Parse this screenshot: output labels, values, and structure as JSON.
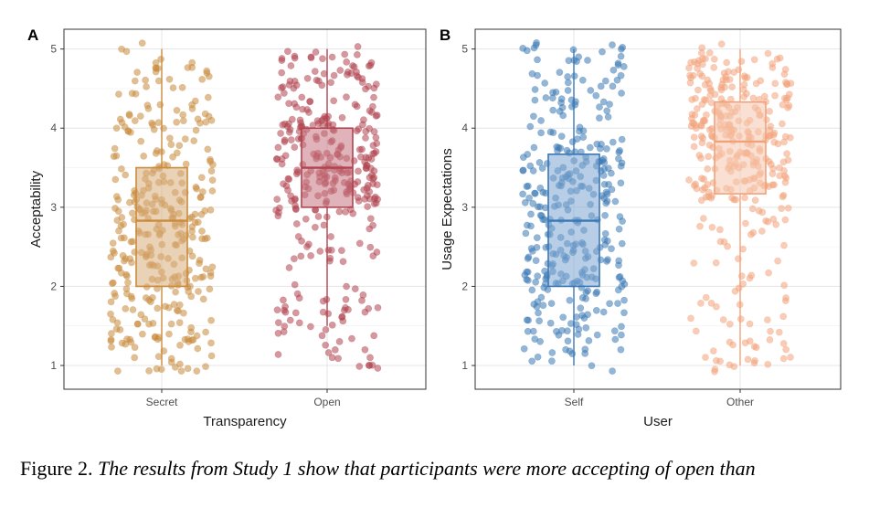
{
  "caption": {
    "lead": "Figure 2.",
    "text": "The results from Study 1 show that participants were more accepting of open than"
  },
  "chart_data": [
    {
      "type": "boxplot",
      "panel": "A",
      "xlabel": "Transparency",
      "ylabel": "Acceptability",
      "ylim": [
        0.7,
        5.25
      ],
      "yticks": [
        1,
        2,
        3,
        4,
        5
      ],
      "grid": true,
      "jittered_points": true,
      "categories": [
        "Secret",
        "Open"
      ],
      "colors": [
        "#c98b3c",
        "#b0434f"
      ],
      "box_fills": [
        "#d9ad7c",
        "#c47580"
      ],
      "boxes": [
        {
          "q1": 2.0,
          "median": 2.83,
          "q3": 3.5,
          "whisker_low": 1.0,
          "whisker_high": 5.0
        },
        {
          "q1": 3.0,
          "median": 3.5,
          "q3": 4.0,
          "whisker_low": 1.5,
          "whisker_high": 5.0
        }
      ]
    },
    {
      "type": "boxplot",
      "panel": "B",
      "xlabel": "User",
      "ylabel": "Usage Expectations",
      "ylim": [
        0.7,
        5.25
      ],
      "yticks": [
        1,
        2,
        3,
        4,
        5
      ],
      "grid": true,
      "jittered_points": true,
      "categories": [
        "Self",
        "Other"
      ],
      "colors": [
        "#3a78b5",
        "#f2a27a"
      ],
      "box_fills": [
        "#7ea6d2",
        "#f6c6ad"
      ],
      "boxes": [
        {
          "q1": 2.0,
          "median": 2.83,
          "q3": 3.67,
          "whisker_low": 1.0,
          "whisker_high": 5.0
        },
        {
          "q1": 3.17,
          "median": 3.83,
          "q3": 4.33,
          "whisker_low": 1.0,
          "whisker_high": 5.0
        }
      ]
    }
  ]
}
